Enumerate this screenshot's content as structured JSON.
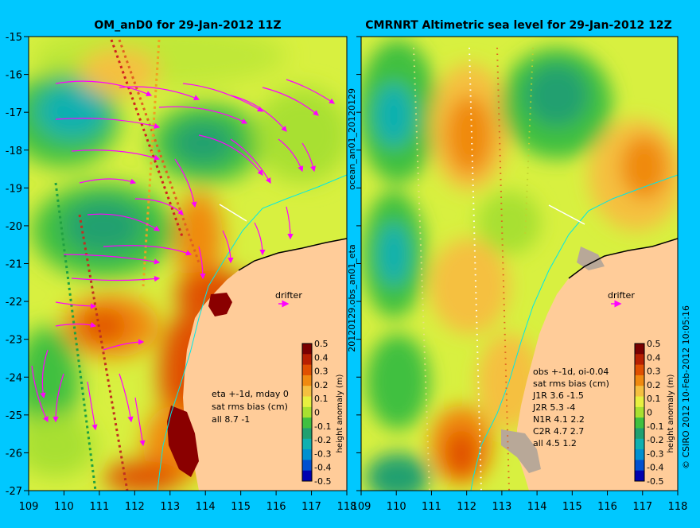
{
  "panels": [
    {
      "title": "OM_anD0 for 29-Jan-2012 11Z",
      "stats": [
        "eta +-1d, mday 0",
        "sat rms bias (cm)",
        "all 8.7 -1"
      ],
      "drifter_label": "drifter"
    },
    {
      "title": "CMRNRT Altimetric sea level  for 29-Jan-2012 12Z",
      "stats": [
        "obs +-1d, oi-0.04",
        "sat rms bias (cm)",
        "J1R   3.6 -1.5",
        "J2R   5.3 -4",
        "N1R   4.1 2.2",
        "C2R   4.7 2.7",
        "all 4.5 1.2"
      ],
      "drifter_label": "drifter"
    }
  ],
  "side_label_top": "ocean_an01_20120129",
  "side_label_bottom": "20120129.obs_an01_eta",
  "copyright": "© CSIRO 2012  10-Feb-2012 10:05:16",
  "y_ticks": [
    "-15",
    "-16",
    "-17",
    "-18",
    "-19",
    "-20",
    "-21",
    "-22",
    "-23",
    "-24",
    "-25",
    "-26",
    "-27"
  ],
  "x_ticks": [
    "109",
    "110",
    "111",
    "112",
    "113",
    "114",
    "115",
    "116",
    "117",
    "118"
  ],
  "colorbar": {
    "label": "height anomaly (m)",
    "ticks": [
      "0.5",
      "0.4",
      "0.3",
      "0.2",
      "0.1",
      "0",
      "-0.1",
      "-0.2",
      "-0.3",
      "-0.4",
      "-0.5"
    ],
    "colors": [
      "#7a0000",
      "#b82000",
      "#e05000",
      "#f08a10",
      "#f5c040",
      "#e8f040",
      "#a8e030",
      "#40c040",
      "#20a070",
      "#10b0b0",
      "#0090d0",
      "#0050d0",
      "#0000b0"
    ]
  },
  "colors": {
    "background": "#00c8ff",
    "land": "#ffcc99",
    "arrows": "#ff00ff",
    "coast_line": "#00ffff"
  }
}
